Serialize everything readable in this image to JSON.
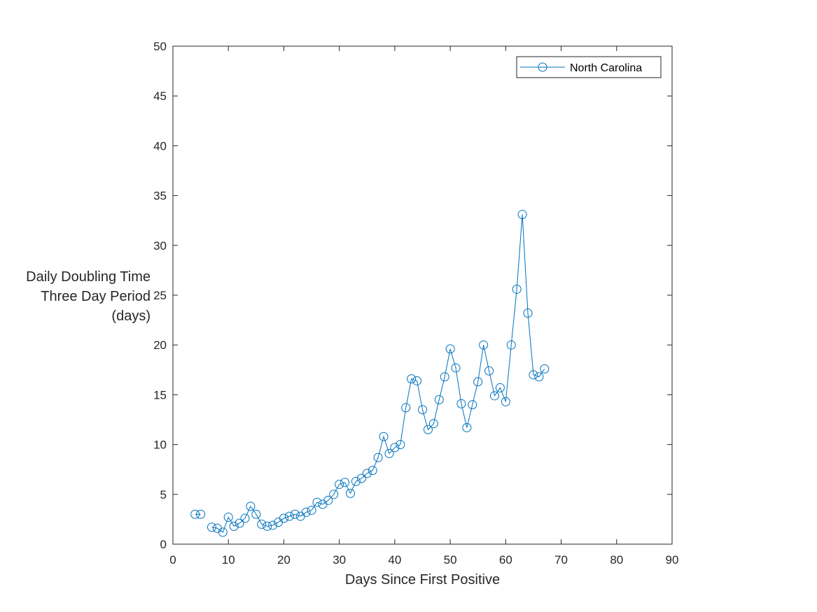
{
  "chart_data": {
    "type": "line",
    "title": "",
    "xlabel": "Days Since First Positive",
    "ylabel_lines": [
      "Daily Doubling Time",
      "Three Day Period",
      "(days)"
    ],
    "xlim": [
      0,
      90
    ],
    "ylim": [
      0,
      50
    ],
    "xticks": [
      0,
      10,
      20,
      30,
      40,
      50,
      60,
      70,
      80,
      90
    ],
    "yticks": [
      0,
      5,
      10,
      15,
      20,
      25,
      30,
      35,
      40,
      45,
      50
    ],
    "grid": false,
    "legend_position": "top-right",
    "marker": "circle",
    "series": [
      {
        "name": "North Carolina",
        "color": "#0072BD",
        "points": [
          [
            4,
            3.0
          ],
          [
            5,
            3.0
          ],
          [
            7,
            1.7
          ],
          [
            8,
            1.6
          ],
          [
            9,
            1.2
          ],
          [
            10,
            2.7
          ],
          [
            11,
            1.8
          ],
          [
            12,
            2.1
          ],
          [
            13,
            2.6
          ],
          [
            14,
            3.8
          ],
          [
            15,
            3.0
          ],
          [
            16,
            2.0
          ],
          [
            17,
            1.8
          ],
          [
            18,
            1.9
          ],
          [
            19,
            2.2
          ],
          [
            20,
            2.6
          ],
          [
            21,
            2.8
          ],
          [
            22,
            3.0
          ],
          [
            23,
            2.8
          ],
          [
            24,
            3.2
          ],
          [
            25,
            3.4
          ],
          [
            26,
            4.2
          ],
          [
            27,
            4.0
          ],
          [
            28,
            4.4
          ],
          [
            29,
            5.0
          ],
          [
            30,
            6.0
          ],
          [
            31,
            6.2
          ],
          [
            32,
            5.1
          ],
          [
            33,
            6.3
          ],
          [
            34,
            6.6
          ],
          [
            35,
            7.1
          ],
          [
            36,
            7.4
          ],
          [
            37,
            8.7
          ],
          [
            38,
            10.8
          ],
          [
            39,
            9.1
          ],
          [
            40,
            9.7
          ],
          [
            41,
            10.0
          ],
          [
            42,
            13.7
          ],
          [
            43,
            16.6
          ],
          [
            44,
            16.4
          ],
          [
            45,
            13.5
          ],
          [
            46,
            11.5
          ],
          [
            47,
            12.1
          ],
          [
            48,
            14.5
          ],
          [
            49,
            16.8
          ],
          [
            50,
            19.6
          ],
          [
            51,
            17.7
          ],
          [
            52,
            14.1
          ],
          [
            53,
            11.7
          ],
          [
            54,
            14.0
          ],
          [
            55,
            16.3
          ],
          [
            56,
            20.0
          ],
          [
            57,
            17.4
          ],
          [
            58,
            14.9
          ],
          [
            59,
            15.7
          ],
          [
            60,
            14.3
          ],
          [
            61,
            20.0
          ],
          [
            62,
            25.6
          ],
          [
            63,
            33.1
          ],
          [
            64,
            23.2
          ],
          [
            65,
            17.0
          ],
          [
            66,
            16.8
          ],
          [
            67,
            17.6
          ]
        ]
      }
    ]
  }
}
